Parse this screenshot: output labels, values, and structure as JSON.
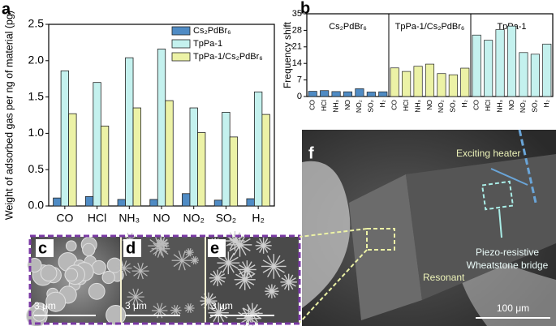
{
  "chart_data": [
    {
      "type": "bar",
      "panel_label": "a",
      "ylabel": "Weight of adsorbed gas per ng of material (pg)",
      "categories": [
        "CO",
        "HCl",
        "NH₃",
        "NO",
        "NO₂",
        "SO₂",
        "H₂"
      ],
      "series": [
        {
          "name": "Cs₂PdBr₆",
          "color": "#4f8bc4",
          "values": [
            0.11,
            0.13,
            0.09,
            0.09,
            0.17,
            0.08,
            0.1
          ]
        },
        {
          "name": "TpPa-1",
          "color": "#c4f1ee",
          "values": [
            1.86,
            1.7,
            2.04,
            2.16,
            1.35,
            1.29,
            1.57
          ]
        },
        {
          "name": "TpPa-1/Cs₂PdBr₆",
          "color": "#ecf2a6",
          "values": [
            1.27,
            1.1,
            1.35,
            1.45,
            1.01,
            0.95,
            1.26
          ]
        }
      ],
      "ylim": [
        0,
        2.5
      ],
      "yticks": [
        {
          "value": 0,
          "label": "0.0"
        },
        0.5,
        {
          "value": 1,
          "label": "1.0"
        },
        1.5,
        {
          "value": 2,
          "label": "2.0"
        },
        2.5
      ],
      "legend": "upper right"
    },
    {
      "type": "faceted_bar",
      "panel_label": "b",
      "ylabel": "Frequency shift",
      "categories": [
        "CO",
        "HCl",
        "NH₃",
        "NO",
        "NO₂",
        "SO₂",
        "H₂"
      ],
      "series": [
        {
          "name": "Cs₂PdBr₆",
          "color": "#4f8bc4",
          "values": [
            2.2,
            2.5,
            2.1,
            2.0,
            3.3,
            1.9,
            2.0
          ]
        },
        {
          "name": "TpPa-1/Cs₂PdBr₆",
          "color": "#ecf2a6",
          "values": [
            12.1,
            10.6,
            12.8,
            13.7,
            9.7,
            9.2,
            12.0
          ]
        },
        {
          "name": "TpPa-1",
          "color": "#c4f1ee",
          "values": [
            26,
            23.8,
            28.3,
            29.8,
            18.6,
            17.9,
            22.2
          ]
        }
      ],
      "ylim": [
        0,
        35
      ],
      "yticks": [
        0,
        7,
        14,
        21,
        28,
        35
      ]
    }
  ],
  "images": {
    "c": {
      "label": "c",
      "scale_bar": "3 μm"
    },
    "d": {
      "label": "d",
      "scale_bar": "3 μm"
    },
    "e": {
      "label": "e",
      "scale_bar": "3 μm"
    },
    "f": {
      "label": "f",
      "heater": "Exciting heater",
      "bridge": [
        "Piezo-resistive",
        "Wheatstone bridge"
      ],
      "resonant": "Resonant",
      "scale_bar": "100 μm"
    }
  }
}
